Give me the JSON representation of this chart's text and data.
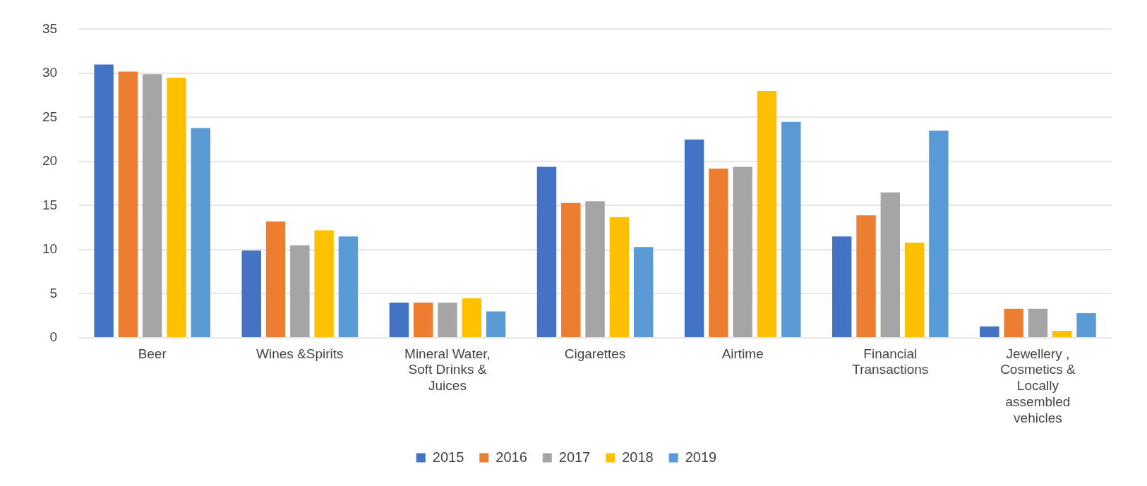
{
  "chart_data": {
    "type": "bar",
    "categories": [
      "Beer",
      "Wines &Spirits",
      "Mineral Water, Soft Drinks & Juices",
      "Cigarettes",
      "Airtime",
      "Financial Transactions",
      "Jewellery , Cosmetics & Locally assembled vehicles"
    ],
    "series": [
      {
        "name": "2015",
        "color": "#4472c4",
        "values": [
          31,
          9.9,
          4.0,
          19.4,
          22.5,
          11.5,
          1.3
        ]
      },
      {
        "name": "2016",
        "color": "#ed7d31",
        "values": [
          30.2,
          13.2,
          4.0,
          15.3,
          19.2,
          13.9,
          3.3
        ]
      },
      {
        "name": "2017",
        "color": "#a5a5a5",
        "values": [
          29.9,
          10.5,
          4.0,
          15.5,
          19.4,
          16.5,
          3.3
        ]
      },
      {
        "name": "2018",
        "color": "#ffc000",
        "values": [
          29.5,
          12.2,
          4.5,
          13.7,
          28.0,
          10.8,
          0.8
        ]
      },
      {
        "name": "2019",
        "color": "#5b9bd5",
        "values": [
          23.8,
          11.5,
          3.0,
          10.3,
          24.5,
          23.5,
          2.8
        ]
      }
    ],
    "ylim": [
      0,
      35
    ],
    "yticks": [
      0,
      5,
      10,
      15,
      20,
      25,
      30,
      35
    ],
    "grid": "y",
    "legend": "bottom"
  }
}
